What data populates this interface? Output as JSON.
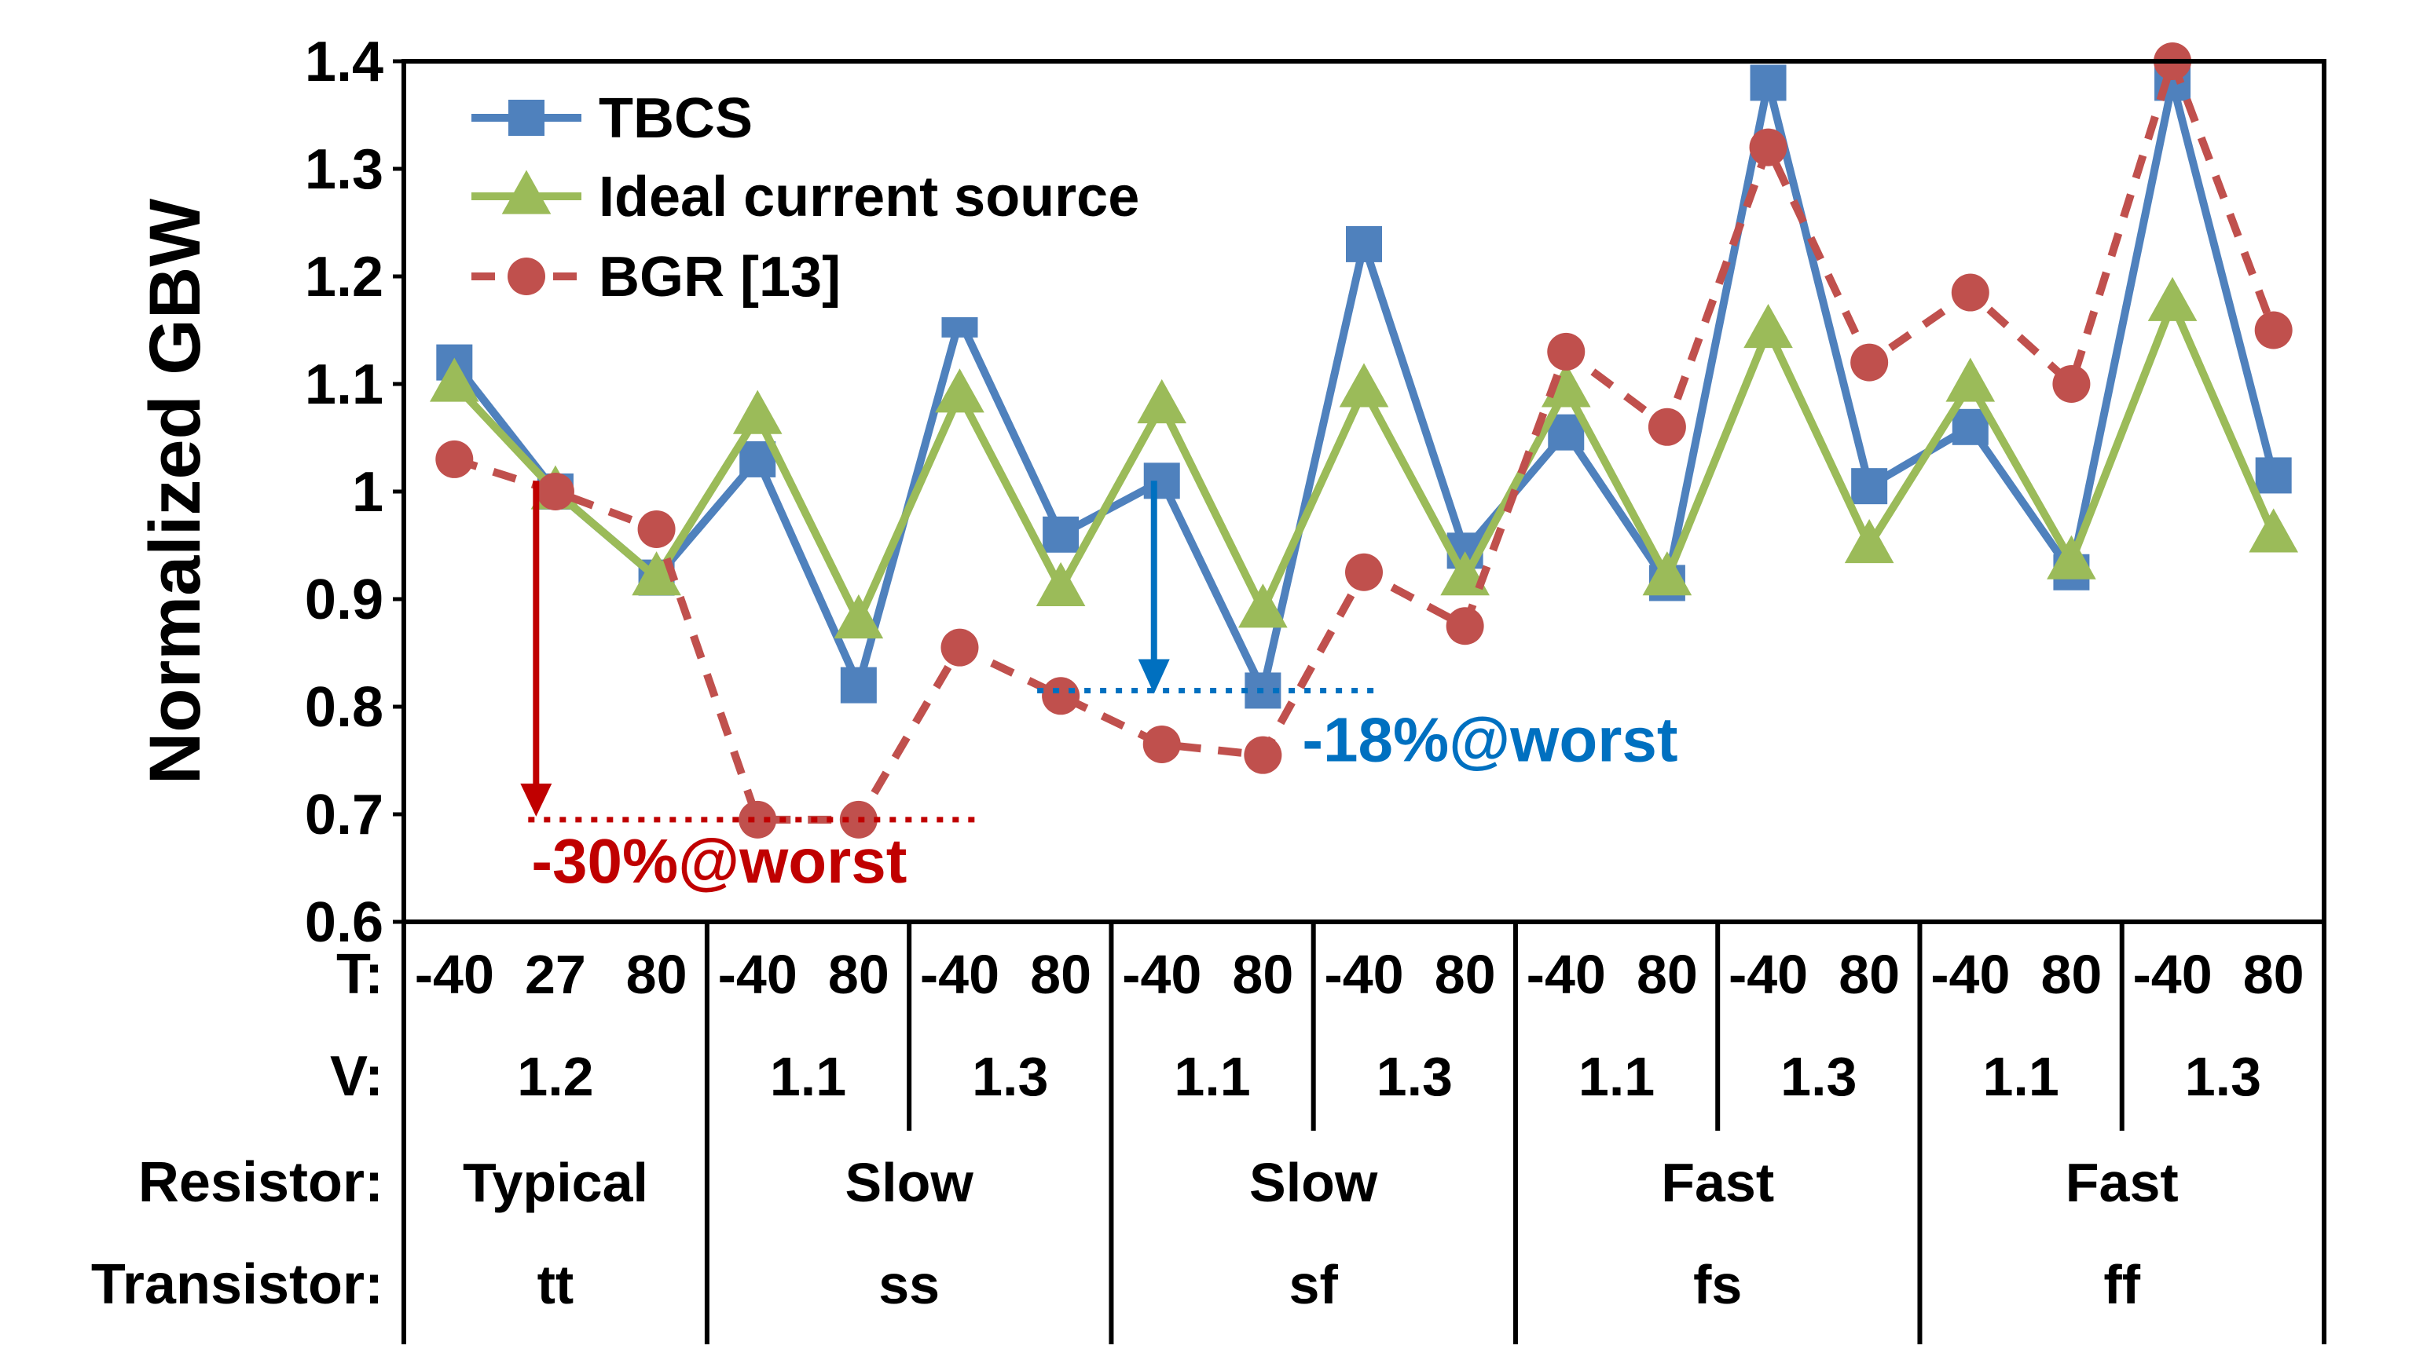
{
  "chart_data": {
    "type": "line",
    "ylabel": "Normalized GBW",
    "ylim": [
      0.6,
      1.4
    ],
    "yticks": [
      "0.6",
      "0.7",
      "0.8",
      "0.9",
      "1",
      "1.1",
      "1.2",
      "1.3",
      "1.4"
    ],
    "legend_position": "top-left",
    "x_rows": {
      "T": {
        "label": "T:",
        "values": [
          "-40",
          "27",
          "80",
          "-40",
          "80",
          "-40",
          "80",
          "-40",
          "80",
          "-40",
          "80",
          "-40",
          "80",
          "-40",
          "80",
          "-40",
          "80",
          "-40",
          "80"
        ]
      },
      "V": {
        "label": "V:",
        "groups": [
          {
            "text": "1.2",
            "span": 3
          },
          {
            "text": "1.1",
            "span": 2
          },
          {
            "text": "1.3",
            "span": 2
          },
          {
            "text": "1.1",
            "span": 2
          },
          {
            "text": "1.3",
            "span": 2
          },
          {
            "text": "1.1",
            "span": 2
          },
          {
            "text": "1.3",
            "span": 2
          },
          {
            "text": "1.1",
            "span": 2
          },
          {
            "text": "1.3",
            "span": 2
          }
        ]
      },
      "Resistor": {
        "label": "Resistor:",
        "groups": [
          {
            "text": "Typical",
            "span": 3
          },
          {
            "text": "Slow",
            "span": 4
          },
          {
            "text": "Slow",
            "span": 4
          },
          {
            "text": "Fast",
            "span": 4
          },
          {
            "text": "Fast",
            "span": 4
          }
        ]
      },
      "Transistor": {
        "label": "Transistor:",
        "groups": [
          {
            "text": "tt",
            "span": 3
          },
          {
            "text": "ss",
            "span": 4
          },
          {
            "text": "sf",
            "span": 4
          },
          {
            "text": "fs",
            "span": 4
          },
          {
            "text": "ff",
            "span": 4
          }
        ]
      }
    },
    "series": [
      {
        "name": "TBCS",
        "color": "#4f81bd",
        "marker": "square",
        "line": "solid",
        "values": [
          1.12,
          1.0,
          0.92,
          1.03,
          0.82,
          1.16,
          0.96,
          1.01,
          0.815,
          1.23,
          0.945,
          1.055,
          0.915,
          1.38,
          1.005,
          1.06,
          0.925,
          1.38,
          1.015
        ]
      },
      {
        "name": "Ideal current source",
        "color": "#9bbb59",
        "marker": "triangle",
        "line": "solid",
        "values": [
          1.1,
          1.0,
          0.92,
          1.07,
          0.88,
          1.09,
          0.91,
          1.08,
          0.89,
          1.095,
          0.92,
          1.095,
          0.92,
          1.15,
          0.95,
          1.1,
          0.935,
          1.175,
          0.96
        ]
      },
      {
        "name": "BGR [13]",
        "color": "#c0504d",
        "marker": "circle",
        "line": "dashed",
        "values": [
          1.03,
          1.0,
          0.965,
          0.695,
          0.695,
          0.855,
          0.81,
          0.765,
          0.755,
          0.925,
          0.875,
          1.13,
          1.06,
          1.32,
          1.12,
          1.185,
          1.1,
          1.4,
          1.15
        ]
      }
    ],
    "annotations": [
      {
        "text": "-18%@worst",
        "color": "#0070c0",
        "from_value": 1.01,
        "to_value": 0.815,
        "x_index": 7
      },
      {
        "text": "-30%@worst",
        "color": "#c00000",
        "from_value": 1.01,
        "to_value": 0.695,
        "x_index": 0
      }
    ]
  }
}
